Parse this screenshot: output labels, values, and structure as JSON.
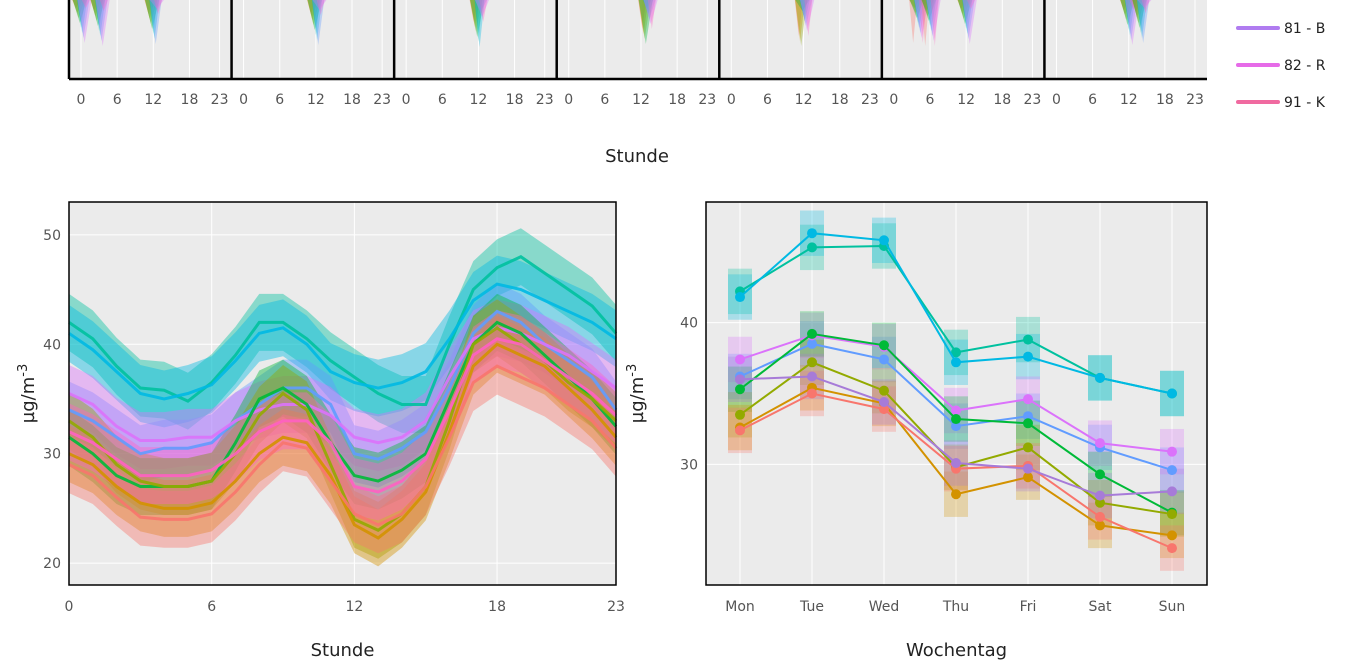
{
  "colors": {
    "panel_bg": "#ebebeb",
    "grid": "#ffffff",
    "series": [
      "#f8766d",
      "#d39200",
      "#93aa00",
      "#00ba38",
      "#00c19f",
      "#00b9e3",
      "#619cff",
      "#db72fb",
      "#ff61c3"
    ]
  },
  "top_strip": {
    "x_ticks": [
      "0",
      "6",
      "12",
      "18",
      "23"
    ],
    "xlabel": "Stunde",
    "panel_count": 7
  },
  "legend": {
    "items": [
      {
        "label": "81 - B",
        "color": "#b07cf0"
      },
      {
        "label": "82 - R",
        "color": "#e66be8"
      },
      {
        "label": "91 - K",
        "color": "#f06aa0"
      }
    ]
  },
  "chart_data": [
    {
      "type": "line",
      "xlabel": "Stunde",
      "ylabel": "µg/m-3",
      "xlim": [
        0,
        23
      ],
      "ylim": [
        18,
        53
      ],
      "x_ticks": [
        0,
        6,
        12,
        18,
        23
      ],
      "y_ticks": [
        20,
        30,
        40,
        50
      ],
      "x": [
        0,
        1,
        2,
        3,
        4,
        5,
        6,
        7,
        8,
        9,
        10,
        11,
        12,
        13,
        14,
        15,
        16,
        17,
        18,
        19,
        20,
        21,
        22,
        23
      ],
      "band_halfwidth": 2.6,
      "series": [
        {
          "color": "#00c19f",
          "values": [
            42,
            40.5,
            38,
            36,
            35.8,
            34.8,
            36.5,
            39,
            42,
            42,
            40.5,
            38.5,
            37,
            35.5,
            34.5,
            34.5,
            40,
            45,
            47,
            48,
            46.5,
            45,
            43.5,
            41
          ]
        },
        {
          "color": "#00b9e3",
          "values": [
            41,
            39.5,
            37.5,
            35.5,
            35,
            35.5,
            36.3,
            38.5,
            41,
            41.5,
            40,
            37.5,
            36.5,
            36,
            36.5,
            37.5,
            40.5,
            44,
            45.5,
            45,
            44,
            43,
            42,
            40.5
          ]
        },
        {
          "color": "#619cff",
          "values": [
            34,
            33,
            31.5,
            30,
            30.5,
            30.5,
            31,
            33,
            34.5,
            36,
            36,
            34.5,
            30,
            29.5,
            30.5,
            32,
            36,
            41,
            43,
            42,
            40,
            38.5,
            37,
            34
          ]
        },
        {
          "color": "#db72fb",
          "values": [
            35.5,
            34.5,
            32.5,
            31.2,
            31.2,
            31.5,
            31.5,
            33,
            34,
            34.5,
            34.5,
            33.5,
            31.5,
            31,
            31.5,
            33,
            37,
            40.5,
            41.5,
            41,
            40,
            39,
            37.5,
            36
          ]
        },
        {
          "color": "#00ba38",
          "values": [
            31.5,
            30,
            28,
            27,
            27,
            27,
            27.5,
            31,
            35,
            36,
            34.5,
            31,
            28,
            27.5,
            28.5,
            30,
            35,
            40,
            42,
            41,
            39,
            37,
            35,
            32.5
          ]
        },
        {
          "color": "#93aa00",
          "values": [
            33,
            31.5,
            29,
            27.5,
            27,
            27,
            27.5,
            30,
            33.5,
            35.5,
            34,
            29,
            24,
            23,
            24.5,
            27,
            33,
            40,
            41.5,
            40,
            38.5,
            36.5,
            35,
            33
          ]
        },
        {
          "color": "#d39200",
          "values": [
            30,
            29,
            27,
            25.5,
            25,
            25,
            25.5,
            27.5,
            30,
            31.5,
            31,
            28,
            23.5,
            22.3,
            24,
            26.5,
            32,
            38,
            40,
            39,
            38,
            36,
            34,
            31.5
          ]
        },
        {
          "color": "#f8766d",
          "values": [
            29,
            28,
            26,
            24.2,
            24,
            24,
            24.5,
            26.5,
            29,
            31,
            30.5,
            27.5,
            24.5,
            23.5,
            24.5,
            27,
            31.5,
            36.5,
            38,
            37,
            36,
            34.5,
            33,
            30.5
          ]
        },
        {
          "color": "#ff61c3",
          "values": [
            32,
            31,
            29.5,
            28,
            28,
            28,
            28.5,
            30,
            32,
            33,
            33,
            31,
            27,
            26.5,
            27.5,
            29.5,
            34,
            39,
            40.5,
            40,
            38.5,
            37,
            35.5,
            33.5
          ]
        }
      ]
    },
    {
      "type": "line",
      "xlabel": "Wochentag",
      "ylabel": "µg/m-3",
      "ylim": [
        21.5,
        48.5
      ],
      "categories": [
        "Mon",
        "Tue",
        "Wed",
        "Thu",
        "Fri",
        "Sat",
        "Sun"
      ],
      "y_ticks": [
        30,
        40
      ],
      "band_halfwidth": 1.6,
      "series": [
        {
          "color": "#00c19f",
          "values": [
            42.2,
            45.3,
            45.4,
            37.9,
            38.8,
            36.1,
            35
          ]
        },
        {
          "color": "#00b9e3",
          "values": [
            41.8,
            46.3,
            45.8,
            37.2,
            37.6,
            36.1,
            35
          ]
        },
        {
          "color": "#619cff",
          "values": [
            36.2,
            38.5,
            37.4,
            32.7,
            33.4,
            31.2,
            29.6
          ]
        },
        {
          "color": "#db72fb",
          "values": [
            37.4,
            39.1,
            38.3,
            33.8,
            34.6,
            31.5,
            30.9
          ]
        },
        {
          "color": "#00ba38",
          "values": [
            35.3,
            39.2,
            38.4,
            33.2,
            32.9,
            29.3,
            26.6
          ]
        },
        {
          "color": "#93aa00",
          "values": [
            33.5,
            37.2,
            35.2,
            29.8,
            31.2,
            27.3,
            26.5
          ]
        },
        {
          "color": "#d39200",
          "values": [
            32.6,
            35.4,
            34.3,
            27.9,
            29.1,
            25.7,
            25
          ]
        },
        {
          "color": "#f8766d",
          "values": [
            32.4,
            35,
            33.9,
            29.7,
            29.9,
            26.3,
            24.1
          ]
        },
        {
          "color": "#a77bd8",
          "values": [
            36,
            36.2,
            34.4,
            30.1,
            29.7,
            27.8,
            28.1
          ]
        }
      ]
    }
  ]
}
